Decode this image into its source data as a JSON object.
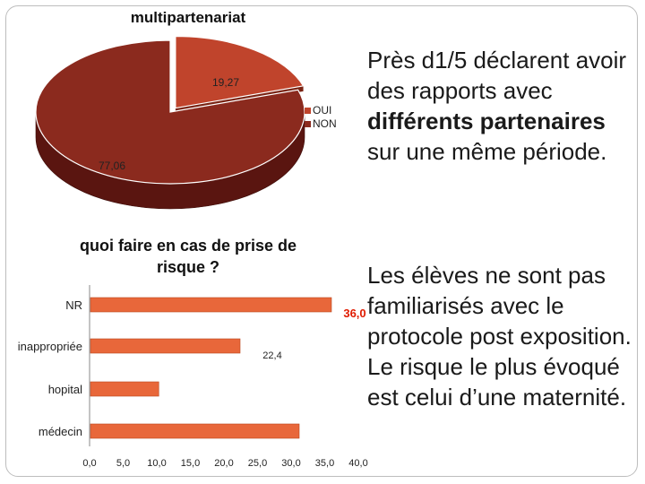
{
  "slide": {
    "text_block_1": {
      "part1": "Près d1/5 déclarent avoir des rapports avec ",
      "bold": "différents partenaires",
      "part2": " sur une même période."
    },
    "text_block_2": "Les élèves ne sont pas familiarisés avec le protocole post exposition. Le risque le plus évoqué est celui d’une maternité."
  },
  "colors": {
    "pie_main": "#8b2a1e",
    "pie_side": "#5a1510",
    "pie_slice": "#c0442c",
    "bar_fill": "#e8673a",
    "value_label": "#e01b00"
  },
  "chart_data": [
    {
      "type": "pie",
      "title": "multipartenariat",
      "style": "3d",
      "slices": [
        {
          "label": "OUI",
          "value": 19.27,
          "display": "19,27"
        },
        {
          "label": "NON",
          "value": 77.06,
          "display": "77,06"
        }
      ],
      "legend": [
        "OUI",
        "NON"
      ],
      "legend_position": "right"
    },
    {
      "type": "bar",
      "orientation": "horizontal",
      "title": "quoi faire en cas de prise de risque ?",
      "categories": [
        "NR",
        "inappropriée",
        "hopital",
        "médecin"
      ],
      "values": [
        36.0,
        22.4,
        10.3,
        31.2
      ],
      "data_labels": [
        "36,0",
        "22,4",
        "",
        ""
      ],
      "xlim": [
        0,
        40
      ],
      "xticks": [
        "0,0",
        "5,0",
        "10,0",
        "15,0",
        "20,0",
        "25,0",
        "30,0",
        "35,0",
        "40,0"
      ],
      "grid": false
    }
  ]
}
